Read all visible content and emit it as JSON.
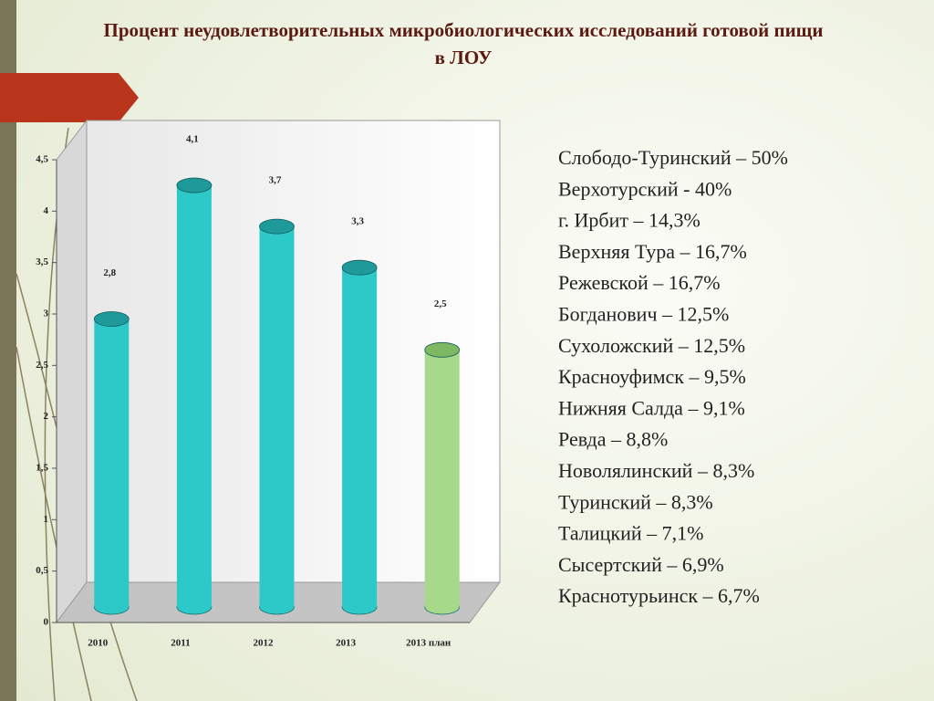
{
  "chart_data": {
    "type": "bar",
    "title": "Процент неудовлетворительных микробиологических исследований готовой пищи в ЛОУ",
    "categories": [
      "2010",
      "2011",
      "2012",
      "2013",
      "2013 план"
    ],
    "values": [
      2.8,
      4.1,
      3.7,
      3.3,
      2.5
    ],
    "value_labels": [
      "2,8",
      "4,1",
      "3,7",
      "3,3",
      "2,5"
    ],
    "colors": [
      "#2dc9c9",
      "#2dc9c9",
      "#2dc9c9",
      "#2dc9c9",
      "#a6d98a"
    ],
    "ylim": [
      0,
      4.5
    ],
    "yticks": [
      0,
      {
        "value": 0.5,
        "label": "0,5"
      },
      1,
      {
        "value": 1.5,
        "label": "1,5"
      },
      2,
      {
        "value": 2.5,
        "label": "2,5"
      },
      3,
      {
        "value": 3.5,
        "label": "3,5"
      },
      4,
      {
        "value": 4.5,
        "label": "4,5"
      }
    ]
  },
  "list": [
    "Слободо-Туринский – 50%",
    "Верхотурский  - 40%",
    "г. Ирбит – 14,3%",
    "Верхняя Тура – 16,7%",
    "Режевской – 16,7%",
    "Богданович – 12,5%",
    "Сухоложский – 12,5%",
    "Красноуфимск – 9,5%",
    "Нижняя Салда – 9,1%",
    "Ревда – 8,8%",
    "Новолялинский – 8,3%",
    "Туринский – 8,3%",
    "Талицкий – 7,1%",
    "Сысертский – 6,9%",
    "Краснотурьинск – 6,7%"
  ]
}
